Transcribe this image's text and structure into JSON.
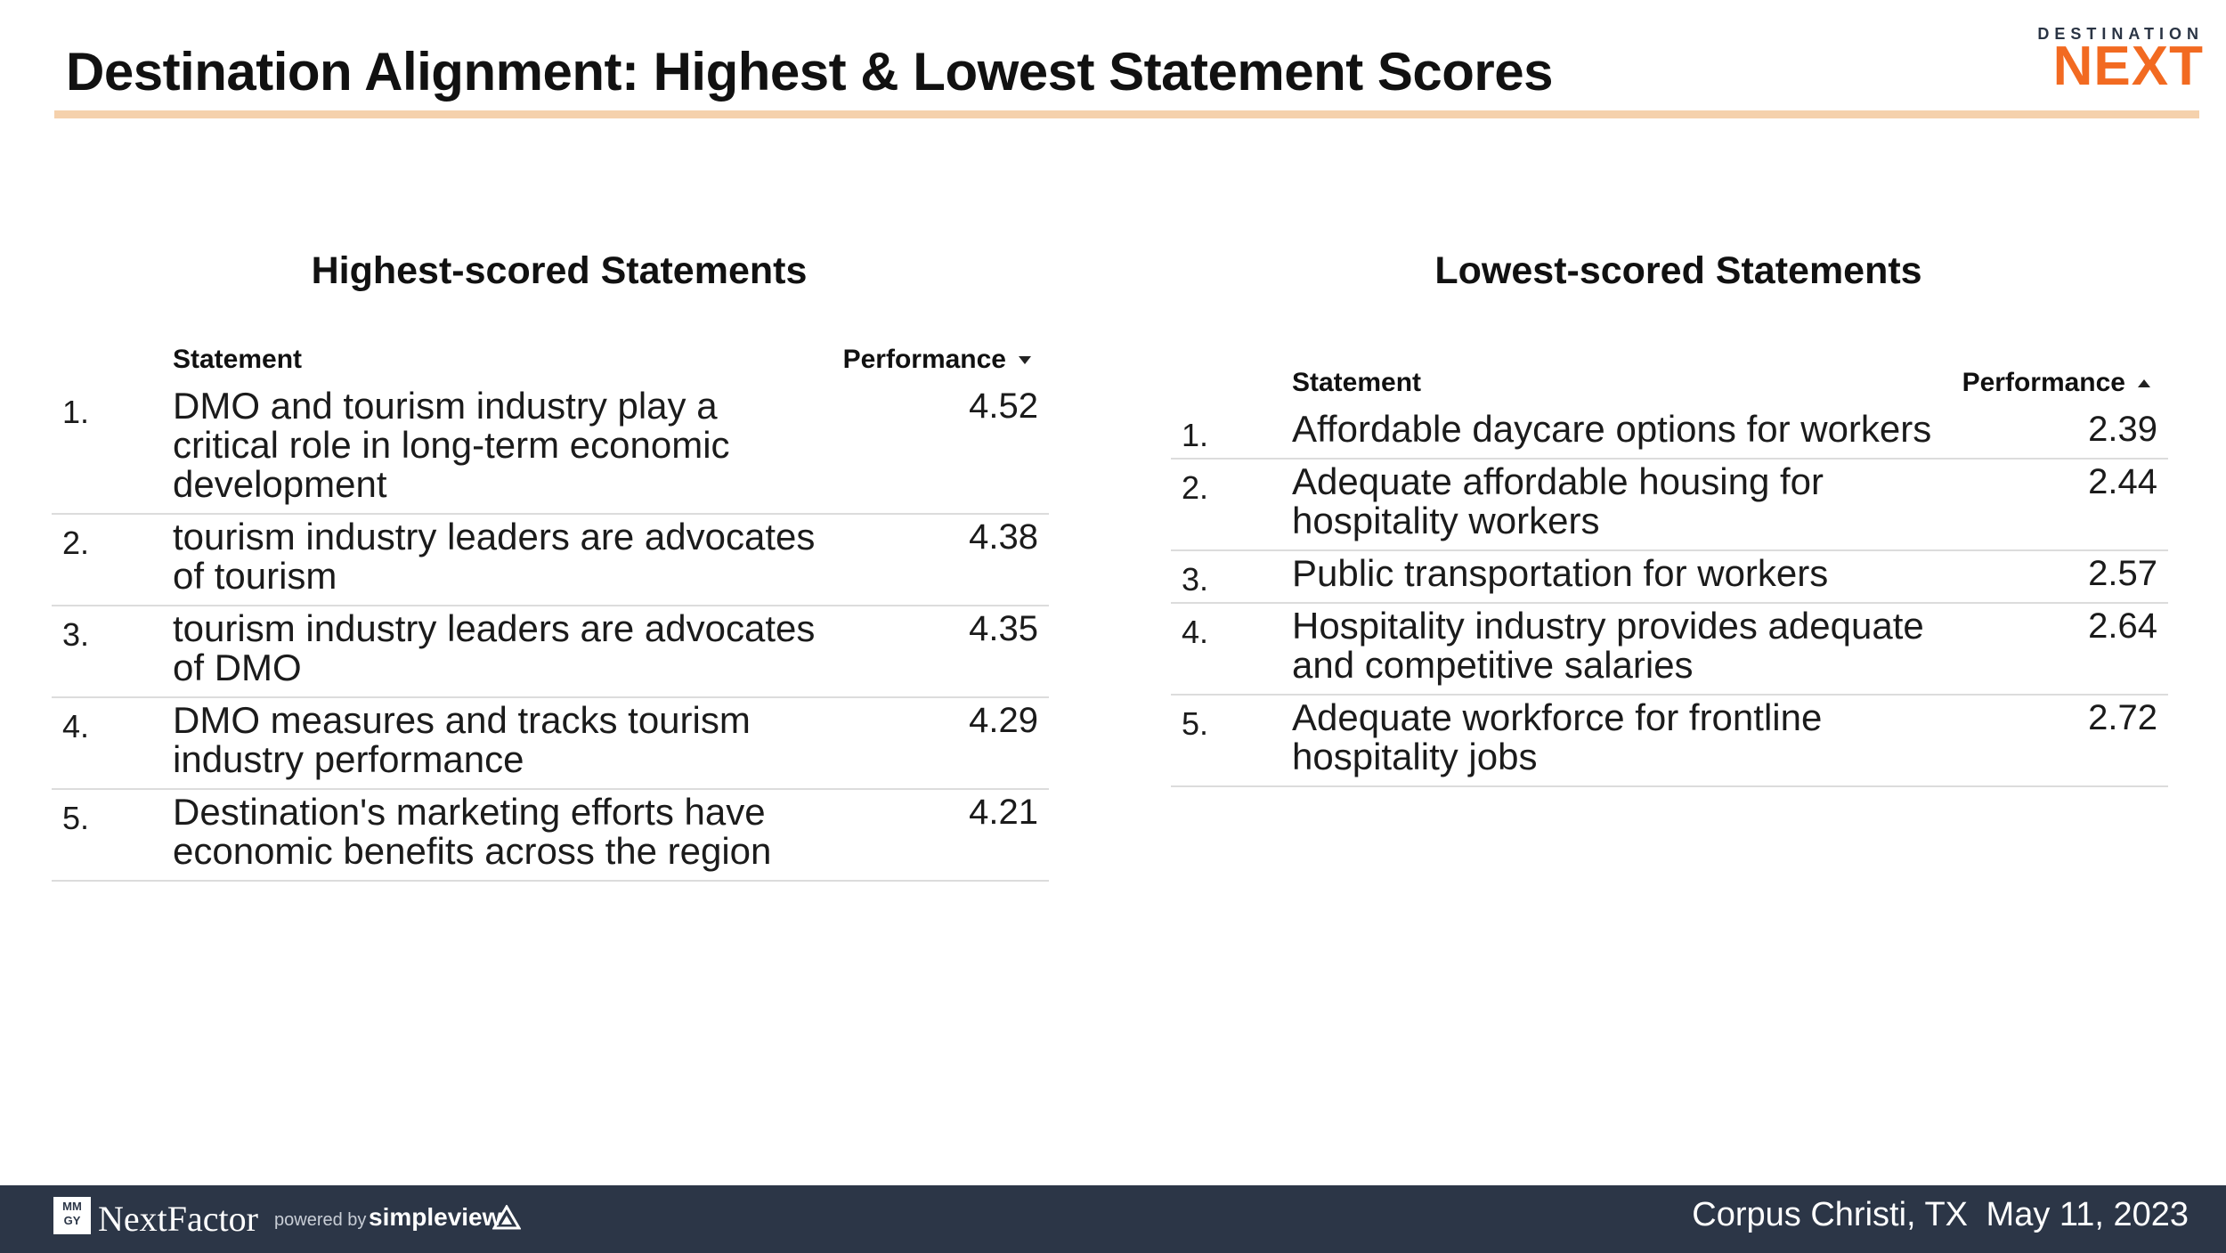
{
  "header": {
    "title": "Destination Alignment: Highest & Lowest Statement Scores",
    "logo_top": "DESTINATION",
    "logo_main": "NEXT"
  },
  "highest": {
    "title": "Highest-scored Statements",
    "col_statement": "Statement",
    "col_performance": "Performance",
    "sort_icon": "sort-descending-icon",
    "rows": [
      {
        "num": "1.",
        "text": "DMO and tourism industry play a critical role in long-term economic development",
        "value": "4.52"
      },
      {
        "num": "2.",
        "text": "tourism industry leaders are advocates of tourism",
        "value": "4.38"
      },
      {
        "num": "3.",
        "text": "tourism industry leaders are advocates of DMO",
        "value": "4.35"
      },
      {
        "num": "4.",
        "text": "DMO measures and tracks tourism industry performance",
        "value": "4.29"
      },
      {
        "num": "5.",
        "text": "Destination's marketing efforts have economic benefits across the region",
        "value": "4.21"
      }
    ]
  },
  "lowest": {
    "title": "Lowest-scored Statements",
    "col_statement": "Statement",
    "col_performance": "Performance",
    "sort_icon": "sort-ascending-icon",
    "rows": [
      {
        "num": "1.",
        "text": "Affordable daycare options for workers",
        "value": "2.39"
      },
      {
        "num": "2.",
        "text": "Adequate affordable housing for hospitality workers",
        "value": "2.44"
      },
      {
        "num": "3.",
        "text": "Public transportation for workers",
        "value": "2.57"
      },
      {
        "num": "4.",
        "text": "Hospitality industry provides adequate and competitive salaries",
        "value": "2.64"
      },
      {
        "num": "5.",
        "text": "Adequate workforce for frontline hospitality jobs",
        "value": "2.72"
      }
    ]
  },
  "footer": {
    "mmgy": "MM GY",
    "brand": "NextFactor",
    "powered_by": "powered by",
    "partner": "simpleview",
    "location": "Corpus Christi, TX",
    "date": "May 11, 2023"
  },
  "colors": {
    "accent_orange": "#f26a21",
    "rule_peach": "#f5d1ac",
    "footer_navy": "#2c3647"
  }
}
